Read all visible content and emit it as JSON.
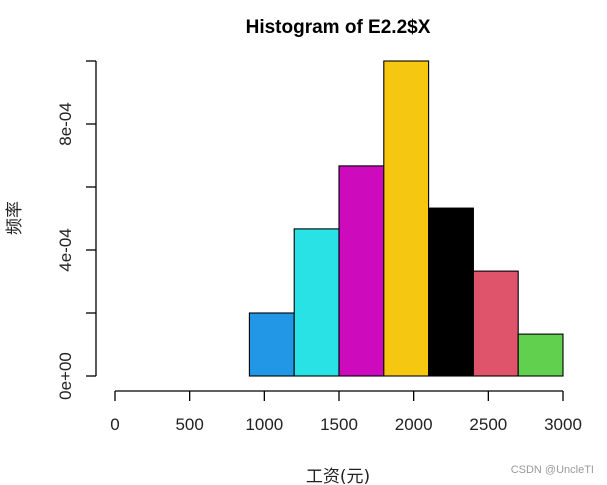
{
  "chart_data": {
    "type": "bar",
    "title": "Histogram of E2.2$X",
    "xlabel": "工资(元)",
    "ylabel": "频率",
    "xlim": [
      0,
      3000
    ],
    "ylim": [
      0,
      0.001
    ],
    "x_ticks": [
      0,
      500,
      1000,
      1500,
      2000,
      2500,
      3000
    ],
    "x_tick_labels": [
      "0",
      "500",
      "1000",
      "1500",
      "2000",
      "2500",
      "3000"
    ],
    "y_ticks": [
      0,
      0.0002,
      0.0004,
      0.0006,
      0.0008,
      0.001
    ],
    "y_tick_labels": [
      "0e+00",
      "",
      "4e-04",
      "",
      "8e-04",
      ""
    ],
    "grid": false,
    "bins": [
      {
        "x0": 0,
        "x1": 300,
        "value": 0,
        "color": "#000000"
      },
      {
        "x0": 300,
        "x1": 600,
        "value": 0,
        "color": "#000000"
      },
      {
        "x0": 600,
        "x1": 900,
        "value": 0,
        "color": "#000000"
      },
      {
        "x0": 900,
        "x1": 1200,
        "value": 0.0002,
        "color": "#2297E6"
      },
      {
        "x0": 1200,
        "x1": 1500,
        "value": 0.000467,
        "color": "#28E2E5"
      },
      {
        "x0": 1500,
        "x1": 1800,
        "value": 0.000667,
        "color": "#CD0BBC"
      },
      {
        "x0": 1800,
        "x1": 2100,
        "value": 0.001,
        "color": "#F5C710"
      },
      {
        "x0": 2100,
        "x1": 2400,
        "value": 0.000533,
        "color": "#000000"
      },
      {
        "x0": 2400,
        "x1": 2700,
        "value": 0.000333,
        "color": "#DF536B"
      },
      {
        "x0": 2700,
        "x1": 3000,
        "value": 0.000133,
        "color": "#61D04F"
      }
    ]
  },
  "watermark": "CSDN @UncleTI"
}
